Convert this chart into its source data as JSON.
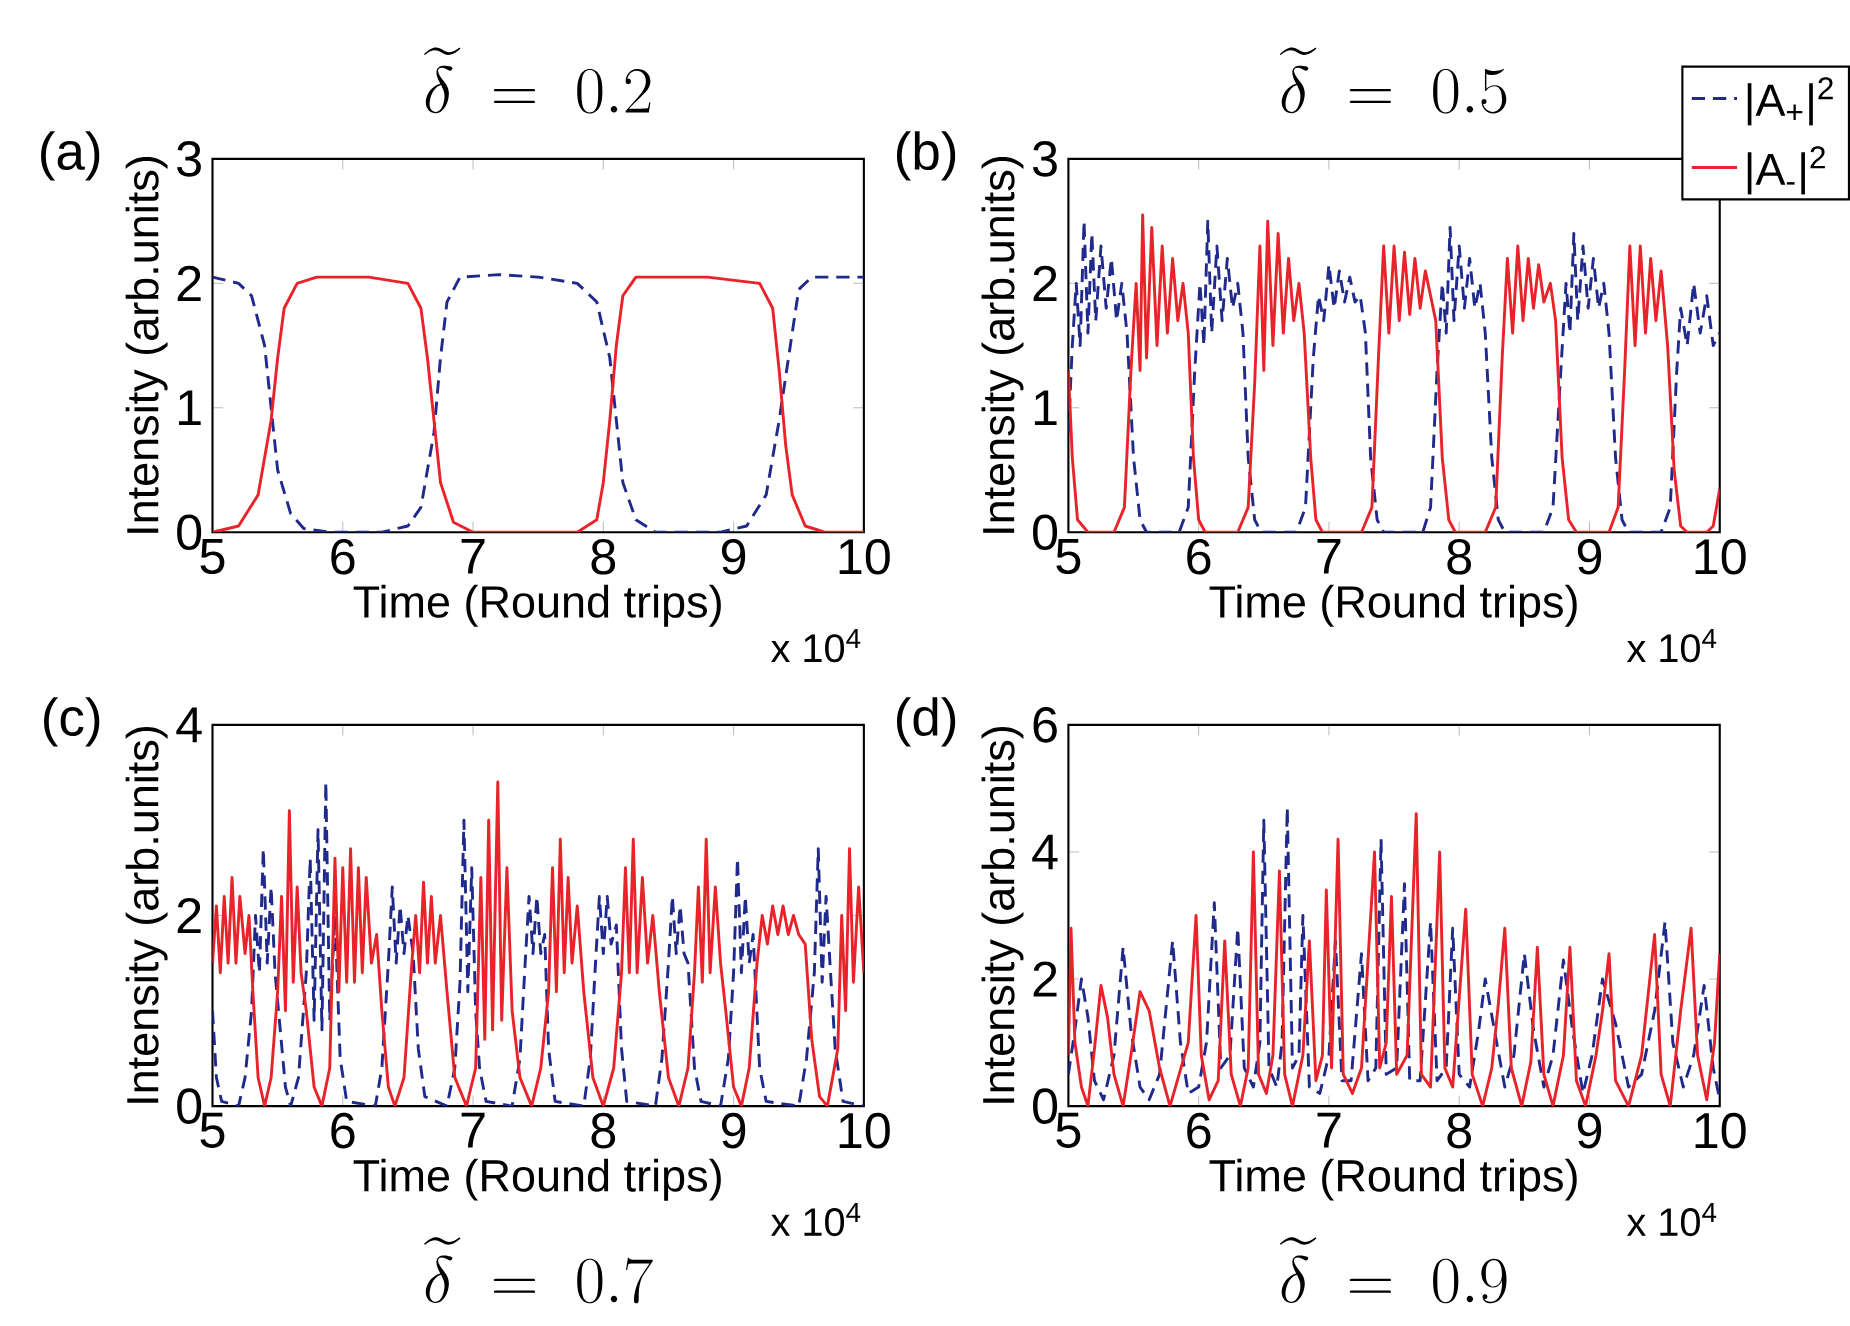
{
  "chart_data": [
    {
      "type": "line",
      "title": "\\widetilde{\\delta} \\;=\\; 0.2",
      "xlabel": "Time (Round trips)",
      "ylabel": "Intensity (arb.units)",
      "annotations": [
        "(a)",
        "x 10$^{4}$"
      ],
      "xlim": [
        5,
        10
      ],
      "xticks": [
        5,
        6,
        7,
        8,
        9,
        10
      ],
      "ylim": [
        0,
        3
      ],
      "yticks": [
        0,
        1,
        2,
        3
      ],
      "series": [
        {
          "color": "#1f2a8c",
          "line_style": "dashed",
          "x": [
            5.0,
            5.2,
            5.3,
            5.4,
            5.45,
            5.5,
            5.6,
            5.7,
            5.9,
            6.3,
            6.5,
            6.6,
            6.7,
            6.75,
            6.8,
            6.9,
            7.2,
            7.5,
            7.8,
            7.95,
            8.05,
            8.1,
            8.15,
            8.25,
            8.4,
            8.9,
            9.1,
            9.25,
            9.35,
            9.45,
            9.5,
            9.6,
            9.8,
            10.0
          ],
          "values": [
            2.05,
            2.0,
            1.9,
            1.5,
            1.0,
            0.5,
            0.15,
            0.03,
            0.0,
            0.0,
            0.05,
            0.2,
            0.8,
            1.4,
            1.85,
            2.05,
            2.07,
            2.05,
            2.0,
            1.85,
            1.4,
            0.9,
            0.4,
            0.1,
            0.0,
            0.0,
            0.05,
            0.3,
            0.9,
            1.6,
            1.95,
            2.05,
            2.05,
            2.05
          ]
        },
        {
          "color": "#e8242a",
          "line_style": "solid",
          "x": [
            5.0,
            5.2,
            5.35,
            5.45,
            5.5,
            5.55,
            5.65,
            5.8,
            6.2,
            6.5,
            6.6,
            6.65,
            6.7,
            6.75,
            6.85,
            7.0,
            7.8,
            7.95,
            8.0,
            8.05,
            8.1,
            8.15,
            8.25,
            8.8,
            9.2,
            9.3,
            9.35,
            9.4,
            9.45,
            9.55,
            9.7,
            10.0
          ],
          "values": [
            0.0,
            0.05,
            0.3,
            0.9,
            1.4,
            1.8,
            2.0,
            2.05,
            2.05,
            2.0,
            1.8,
            1.4,
            0.9,
            0.4,
            0.08,
            0.0,
            0.0,
            0.1,
            0.4,
            0.9,
            1.5,
            1.9,
            2.05,
            2.05,
            2.0,
            1.8,
            1.3,
            0.7,
            0.3,
            0.05,
            0.0,
            0.0
          ]
        }
      ]
    },
    {
      "type": "line",
      "title": "\\widetilde{\\delta} \\;=\\; 0.5",
      "xlabel": "Time (Round trips)",
      "ylabel": "Intensity (arb.units)",
      "annotations": [
        "(b)",
        "x 10$^{4}$"
      ],
      "xlim": [
        5,
        10
      ],
      "xticks": [
        5,
        6,
        7,
        8,
        9,
        10
      ],
      "ylim": [
        0,
        3
      ],
      "yticks": [
        0,
        1,
        2,
        3
      ],
      "legend": "top right",
      "series": [
        {
          "name": "|A$_{+}$|$^{2}$",
          "color": "#1f2a8c",
          "line_style": "dashed",
          "x": [
            5.0,
            5.03,
            5.06,
            5.09,
            5.12,
            5.15,
            5.18,
            5.21,
            5.25,
            5.29,
            5.33,
            5.37,
            5.41,
            5.45,
            5.5,
            5.55,
            5.6,
            5.85,
            5.92,
            5.97,
            6.01,
            6.04,
            6.07,
            6.1,
            6.14,
            6.18,
            6.22,
            6.26,
            6.3,
            6.34,
            6.38,
            6.43,
            6.48,
            6.75,
            6.82,
            6.88,
            6.92,
            6.96,
            7.0,
            7.04,
            7.08,
            7.12,
            7.16,
            7.2,
            7.24,
            7.28,
            7.32,
            7.37,
            7.42,
            7.72,
            7.78,
            7.83,
            7.87,
            7.9,
            7.93,
            7.96,
            8.0,
            8.04,
            8.08,
            8.12,
            8.16,
            8.2,
            8.25,
            8.3,
            8.35,
            8.65,
            8.72,
            8.78,
            8.82,
            8.85,
            8.88,
            8.91,
            8.95,
            8.99,
            9.03,
            9.07,
            9.11,
            9.15,
            9.2,
            9.25,
            9.3,
            9.55,
            9.62,
            9.67,
            9.7,
            9.75,
            9.8,
            9.85,
            9.9,
            9.95,
            10.0
          ],
          "values": [
            0.8,
            1.5,
            2.0,
            1.5,
            2.5,
            1.6,
            2.4,
            1.7,
            2.3,
            1.8,
            2.2,
            1.7,
            2.0,
            1.6,
            0.6,
            0.1,
            0,
            0,
            0.2,
            1.3,
            2.0,
            1.5,
            2.5,
            1.6,
            2.3,
            1.7,
            2.2,
            1.8,
            2.0,
            1.6,
            0.6,
            0.1,
            0,
            0,
            0.2,
            1.4,
            1.9,
            1.7,
            2.15,
            1.8,
            2.1,
            1.85,
            2.05,
            1.85,
            1.9,
            1.6,
            0.6,
            0.1,
            0,
            0,
            0.2,
            1.3,
            2.0,
            1.6,
            2.45,
            1.7,
            2.3,
            1.8,
            2.2,
            1.8,
            2.0,
            1.6,
            0.6,
            0.1,
            0,
            0,
            0.2,
            1.3,
            2.0,
            1.6,
            2.4,
            1.7,
            2.3,
            1.8,
            2.2,
            1.8,
            2.0,
            1.6,
            0.6,
            0.1,
            0,
            0,
            0.2,
            1.3,
            1.8,
            1.5,
            2.0,
            1.6,
            1.9,
            1.5,
            1.6
          ]
        },
        {
          "name": "|A$_{-}$|$^{2}$",
          "color": "#e8242a",
          "line_style": "solid",
          "x": [
            5.0,
            5.03,
            5.07,
            5.15,
            5.35,
            5.43,
            5.48,
            5.52,
            5.55,
            5.57,
            5.6,
            5.64,
            5.68,
            5.72,
            5.76,
            5.8,
            5.84,
            5.88,
            5.92,
            5.96,
            6.0,
            6.05,
            6.3,
            6.38,
            6.43,
            6.47,
            6.5,
            6.53,
            6.57,
            6.61,
            6.65,
            6.69,
            6.73,
            6.77,
            6.81,
            6.86,
            6.9,
            6.95,
            7.25,
            7.33,
            7.38,
            7.42,
            7.46,
            7.5,
            7.54,
            7.58,
            7.62,
            7.66,
            7.7,
            7.74,
            7.78,
            7.82,
            7.87,
            7.92,
            7.97,
            8.2,
            8.28,
            8.33,
            8.37,
            8.41,
            8.45,
            8.49,
            8.53,
            8.57,
            8.61,
            8.65,
            8.7,
            8.74,
            8.79,
            8.84,
            8.9,
            9.15,
            9.22,
            9.27,
            9.31,
            9.35,
            9.39,
            9.43,
            9.47,
            9.51,
            9.55,
            9.6,
            9.65,
            9.7,
            9.75,
            9.9,
            9.95,
            10.0
          ],
          "values": [
            1.3,
            0.6,
            0.1,
            0,
            0,
            0.2,
            1.3,
            2.0,
            1.3,
            2.55,
            1.4,
            2.45,
            1.5,
            2.3,
            1.6,
            2.2,
            1.7,
            2.0,
            1.6,
            0.6,
            0.1,
            0,
            0,
            0.2,
            1.2,
            2.3,
            1.3,
            2.5,
            1.5,
            2.4,
            1.6,
            2.2,
            1.7,
            2.0,
            1.6,
            0.6,
            0.1,
            0,
            0,
            0.2,
            1.4,
            2.3,
            1.6,
            2.3,
            1.7,
            2.25,
            1.75,
            2.2,
            1.8,
            2.1,
            1.9,
            1.7,
            0.6,
            0.1,
            0,
            0,
            0.2,
            1.4,
            2.2,
            1.6,
            2.3,
            1.7,
            2.2,
            1.8,
            2.15,
            1.85,
            2.0,
            1.7,
            0.6,
            0.1,
            0,
            0,
            0.2,
            1.3,
            2.3,
            1.5,
            2.3,
            1.6,
            2.2,
            1.7,
            2.1,
            1.5,
            0.5,
            0.05,
            0,
            0,
            0.05,
            0.35
          ]
        }
      ]
    },
    {
      "type": "line",
      "title": "\\widetilde{\\delta} \\;=\\; 0.7",
      "xlabel": "Time (Round trips)",
      "ylabel": "Intensity (arb.units)",
      "annotations": [
        "(c)",
        "x 10$^{4}$"
      ],
      "xlim": [
        5,
        10
      ],
      "xticks": [
        5,
        6,
        7,
        8,
        9,
        10
      ],
      "ylim": [
        0,
        4
      ],
      "yticks": [
        0,
        2,
        4
      ],
      "series": [
        {
          "color": "#1f2a8c",
          "line_style": "dashed",
          "x": [
            5.0,
            5.03,
            5.07,
            5.2,
            5.25,
            5.3,
            5.33,
            5.36,
            5.39,
            5.42,
            5.45,
            5.48,
            5.52,
            5.56,
            5.6,
            5.66,
            5.72,
            5.75,
            5.78,
            5.81,
            5.84,
            5.87,
            5.9,
            5.94,
            5.98,
            6.03,
            6.25,
            6.3,
            6.35,
            6.38,
            6.41,
            6.44,
            6.47,
            6.5,
            6.54,
            6.58,
            6.63,
            6.8,
            6.86,
            6.9,
            6.93,
            6.96,
            6.99,
            7.02,
            7.05,
            7.1,
            7.3,
            7.36,
            7.4,
            7.43,
            7.46,
            7.49,
            7.52,
            7.55,
            7.58,
            7.63,
            7.85,
            7.9,
            7.94,
            7.97,
            8.0,
            8.03,
            8.06,
            8.1,
            8.14,
            8.18,
            8.4,
            8.45,
            8.5,
            8.53,
            8.56,
            8.59,
            8.62,
            8.65,
            8.7,
            8.75,
            8.9,
            8.96,
            9.0,
            9.03,
            9.06,
            9.09,
            9.12,
            9.15,
            9.2,
            9.25,
            9.5,
            9.56,
            9.62,
            9.65,
            9.68,
            9.71,
            9.74,
            9.78,
            9.84,
            10.0
          ],
          "values": [
            1.0,
            0.3,
            0.05,
            0,
            0.3,
            1.0,
            2.0,
            1.4,
            2.7,
            1.5,
            2.3,
            1.4,
            0.8,
            0.2,
            0,
            0.3,
            1.4,
            2.6,
            0.9,
            2.9,
            0.8,
            3.4,
            0.9,
            2.0,
            0.5,
            0.05,
            0,
            0.4,
            1.5,
            2.3,
            1.5,
            2.1,
            1.6,
            2.0,
            1.6,
            0.6,
            0.1,
            0,
            0.4,
            1.3,
            3.0,
            1.2,
            2.5,
            1.0,
            0.4,
            0.05,
            0,
            0.5,
            1.5,
            2.2,
            1.6,
            2.2,
            1.6,
            1.8,
            0.6,
            0.05,
            0,
            0.5,
            1.5,
            2.2,
            1.6,
            2.2,
            1.7,
            1.9,
            0.6,
            0.05,
            0,
            0.5,
            1.5,
            2.2,
            1.6,
            2.1,
            1.6,
            1.5,
            0.4,
            0.05,
            0,
            0.5,
            1.4,
            2.6,
            1.4,
            2.2,
            1.5,
            1.8,
            0.4,
            0.05,
            0,
            0.5,
            1.4,
            2.7,
            1.3,
            2.2,
            1.5,
            0.6,
            0.05,
            0
          ]
        },
        {
          "color": "#e8242a",
          "line_style": "solid",
          "x": [
            5.0,
            5.03,
            5.06,
            5.09,
            5.12,
            5.15,
            5.18,
            5.21,
            5.25,
            5.28,
            5.31,
            5.35,
            5.4,
            5.45,
            5.5,
            5.53,
            5.56,
            5.59,
            5.62,
            5.65,
            5.68,
            5.72,
            5.78,
            5.84,
            5.9,
            5.94,
            5.97,
            6.0,
            6.03,
            6.06,
            6.09,
            6.12,
            6.15,
            6.18,
            6.22,
            6.26,
            6.3,
            6.35,
            6.4,
            6.47,
            6.53,
            6.56,
            6.59,
            6.62,
            6.65,
            6.68,
            6.71,
            6.75,
            6.8,
            6.86,
            6.95,
            7.02,
            7.06,
            7.09,
            7.12,
            7.15,
            7.19,
            7.22,
            7.26,
            7.3,
            7.36,
            7.45,
            7.52,
            7.58,
            7.61,
            7.64,
            7.67,
            7.7,
            7.73,
            7.76,
            7.8,
            7.85,
            7.92,
            8.0,
            8.08,
            8.14,
            8.17,
            8.2,
            8.23,
            8.26,
            8.3,
            8.34,
            8.38,
            8.43,
            8.5,
            8.58,
            8.65,
            8.7,
            8.73,
            8.76,
            8.79,
            8.82,
            8.86,
            8.9,
            8.94,
            9.0,
            9.06,
            9.12,
            9.18,
            9.22,
            9.26,
            9.3,
            9.34,
            9.38,
            9.42,
            9.46,
            9.5,
            9.55,
            9.6,
            9.66,
            9.72,
            9.8,
            9.83,
            9.86,
            9.89,
            9.92,
            9.96,
            10.0
          ],
          "values": [
            1.5,
            2.1,
            1.4,
            2.2,
            1.5,
            2.4,
            1.5,
            2.2,
            1.6,
            2.0,
            1.2,
            0.3,
            0,
            0.3,
            1.2,
            2.2,
            1.0,
            3.1,
            1.3,
            2.3,
            1.4,
            1.0,
            0.2,
            0,
            0.4,
            2.6,
            1.2,
            2.5,
            1.3,
            2.7,
            1.3,
            2.5,
            1.4,
            2.4,
            1.5,
            1.8,
            1.0,
            0.2,
            0,
            0.3,
            1.5,
            2.0,
            1.4,
            2.35,
            1.5,
            2.2,
            1.5,
            2.0,
            1.2,
            0.3,
            0,
            0.4,
            2.4,
            0.7,
            3.0,
            0.8,
            3.4,
            0.9,
            2.5,
            1.0,
            0.3,
            0,
            0.4,
            1.2,
            2.5,
            1.2,
            2.8,
            1.4,
            2.4,
            1.5,
            2.1,
            1.2,
            0.3,
            0,
            0.4,
            1.4,
            2.5,
            1.4,
            2.8,
            1.4,
            2.4,
            1.5,
            2.0,
            1.2,
            0.3,
            0,
            0.4,
            1.4,
            2.3,
            1.3,
            2.8,
            1.4,
            2.3,
            1.5,
            1.0,
            0.2,
            0,
            0.4,
            1.5,
            2.0,
            1.7,
            2.1,
            1.8,
            2.1,
            1.8,
            2.0,
            1.8,
            1.7,
            0.7,
            0.1,
            0,
            0.6,
            2.0,
            1.0,
            2.7,
            1.3,
            2.3,
            1.4
          ]
        }
      ]
    },
    {
      "type": "line",
      "title": "\\widetilde{\\delta} \\;=\\; 0.9",
      "xlabel": "Time (Round trips)",
      "ylabel": "Intensity (arb.units)",
      "annotations": [
        "(d)",
        "x 10$^{4}$"
      ],
      "xlim": [
        5,
        10
      ],
      "xticks": [
        5,
        6,
        7,
        8,
        9,
        10
      ],
      "ylim": [
        0,
        6
      ],
      "yticks": [
        0,
        2,
        4,
        6
      ],
      "series": [
        {
          "color": "#1f2a8c",
          "line_style": "dashed",
          "x": [
            5.0,
            5.05,
            5.1,
            5.15,
            5.2,
            5.27,
            5.35,
            5.42,
            5.48,
            5.55,
            5.62,
            5.7,
            5.8,
            5.86,
            5.92,
            6.0,
            6.06,
            6.12,
            6.17,
            6.24,
            6.3,
            6.35,
            6.42,
            6.47,
            6.5,
            6.54,
            6.6,
            6.64,
            6.68,
            6.72,
            6.77,
            6.8,
            6.85,
            6.93,
            7.0,
            7.05,
            7.1,
            7.17,
            7.25,
            7.3,
            7.36,
            7.4,
            7.44,
            7.52,
            7.58,
            7.62,
            7.7,
            7.78,
            7.83,
            7.9,
            7.95,
            8.0,
            8.08,
            8.15,
            8.2,
            8.27,
            8.35,
            8.42,
            8.5,
            8.57,
            8.65,
            8.72,
            8.8,
            8.87,
            8.95,
            9.02,
            9.1,
            9.2,
            9.3,
            9.4,
            9.5,
            9.58,
            9.64,
            9.72,
            9.8,
            9.88,
            9.95,
            10.0
          ],
          "values": [
            0.5,
            1.2,
            2.0,
            1.4,
            0.4,
            0.1,
            0.8,
            2.5,
            1.2,
            0.3,
            0.1,
            0.5,
            2.6,
            1.0,
            0.2,
            0.3,
            1.0,
            3.2,
            0.6,
            0.8,
            2.8,
            0.6,
            0.3,
            1.0,
            4.5,
            0.6,
            0.3,
            1.0,
            4.7,
            0.6,
            0.8,
            3.0,
            0.3,
            0.2,
            0.8,
            2.6,
            0.4,
            0.4,
            2.4,
            0.4,
            0.6,
            4.2,
            0.5,
            0.6,
            3.5,
            0.4,
            0.4,
            2.9,
            0.4,
            0.6,
            2.8,
            0.5,
            0.3,
            1.2,
            2.0,
            1.2,
            0.3,
            0.8,
            2.4,
            1.2,
            0.3,
            0.8,
            2.3,
            1.2,
            0.2,
            0.8,
            2.0,
            1.3,
            0.3,
            0.5,
            1.5,
            2.9,
            1.0,
            0.3,
            0.8,
            1.9,
            0.6,
            0.1
          ]
        },
        {
          "color": "#e8242a",
          "line_style": "solid",
          "x": [
            5.0,
            5.02,
            5.05,
            5.1,
            5.15,
            5.2,
            5.25,
            5.3,
            5.35,
            5.42,
            5.48,
            5.55,
            5.62,
            5.7,
            5.78,
            5.85,
            5.92,
            5.98,
            6.02,
            6.08,
            6.15,
            6.2,
            6.25,
            6.32,
            6.38,
            6.42,
            6.46,
            6.52,
            6.57,
            6.62,
            6.66,
            6.72,
            6.8,
            6.85,
            6.9,
            6.95,
            6.98,
            7.02,
            7.07,
            7.11,
            7.18,
            7.25,
            7.35,
            7.39,
            7.44,
            7.48,
            7.52,
            7.6,
            7.67,
            7.71,
            7.78,
            7.85,
            7.89,
            7.95,
            8.05,
            8.1,
            8.18,
            8.25,
            8.3,
            8.35,
            8.4,
            8.48,
            8.55,
            8.6,
            8.65,
            8.72,
            8.8,
            8.85,
            8.9,
            8.97,
            9.05,
            9.1,
            9.15,
            9.2,
            9.3,
            9.4,
            9.5,
            9.55,
            9.62,
            9.7,
            9.78,
            9.83,
            9.9,
            9.96,
            10.0
          ],
          "values": [
            0.8,
            2.8,
            1.0,
            0.3,
            0,
            0.9,
            1.9,
            1.4,
            0.5,
            0,
            0.8,
            1.8,
            1.5,
            0.6,
            0,
            0.5,
            1.0,
            3.0,
            0.8,
            0.1,
            0.4,
            2.6,
            0.5,
            0,
            0.6,
            4.0,
            0.5,
            0.2,
            0.8,
            3.7,
            0.5,
            0,
            0.8,
            2.6,
            0.4,
            0.8,
            3.4,
            0.6,
            4.2,
            0.5,
            0.2,
            0.6,
            4.0,
            0.6,
            1.0,
            3.3,
            0.5,
            0.8,
            4.6,
            0.5,
            0.3,
            4.0,
            0.6,
            0.3,
            3.1,
            0.5,
            0,
            0.6,
            1.6,
            2.8,
            0.6,
            0,
            0.7,
            2.5,
            0.5,
            0,
            0.8,
            2.5,
            0.4,
            0,
            0.8,
            1.5,
            2.4,
            0.4,
            0,
            0.8,
            2.7,
            0.5,
            0,
            1.5,
            2.8,
            0.8,
            0.1,
            1.0,
            2.4
          ]
        }
      ]
    }
  ]
}
